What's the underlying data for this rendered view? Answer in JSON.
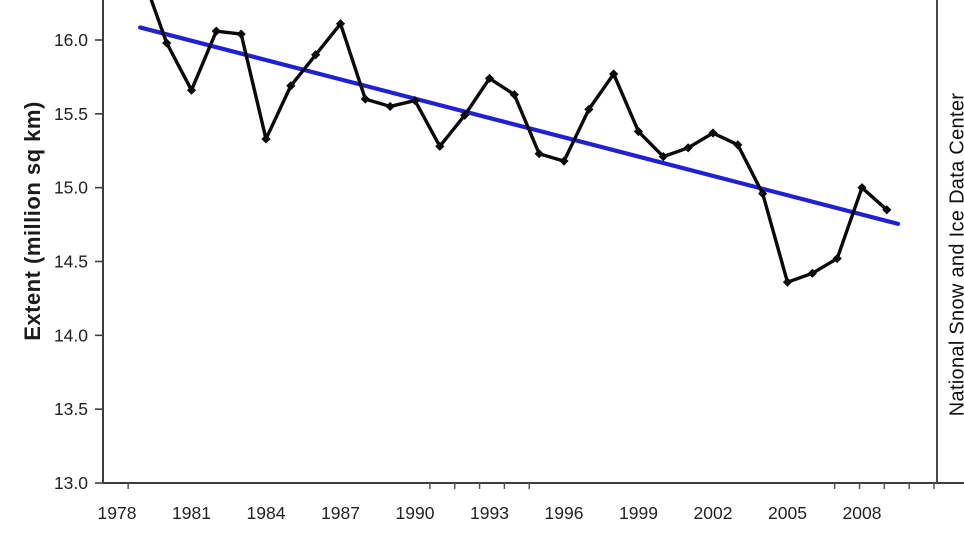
{
  "chart_data": {
    "type": "line",
    "title": "",
    "ylabel": "Extent (million sq km)",
    "right_label": "National Snow and Ice Data Center",
    "xlabel": "",
    "x": [
      1979,
      1980,
      1981,
      1982,
      1983,
      1984,
      1985,
      1986,
      1987,
      1988,
      1989,
      1990,
      1991,
      1992,
      1993,
      1994,
      1995,
      1996,
      1997,
      1998,
      1999,
      2000,
      2001,
      2002,
      2003,
      2004,
      2005,
      2006,
      2007,
      2008,
      2009
    ],
    "series": [
      {
        "name": "arctic-sea-ice-extent",
        "color": "#0a0a0a",
        "marker": "diamond",
        "values": [
          16.45,
          15.98,
          15.66,
          16.06,
          16.04,
          15.33,
          15.69,
          15.9,
          16.11,
          15.6,
          15.55,
          15.59,
          15.28,
          15.49,
          15.74,
          15.63,
          15.23,
          15.18,
          15.53,
          15.77,
          15.38,
          15.21,
          15.27,
          15.37,
          15.29,
          14.96,
          14.36,
          14.42,
          14.52,
          15.0,
          14.85
        ]
      }
    ],
    "trend_line": {
      "name": "linear-trend",
      "color": "#2121d1",
      "x1": 1978.93,
      "y1": 16.085,
      "x2": 2009.45,
      "y2": 14.755
    },
    "x_tick_labels": [
      "1978",
      "1981",
      "1984",
      "1987",
      "1990",
      "1993",
      "1996",
      "1999",
      "2002",
      "2005",
      "2008"
    ],
    "x_tick_years": [
      1978,
      1981,
      1984,
      1987,
      1990,
      1993,
      1996,
      1999,
      2002,
      2005,
      2008
    ],
    "minor_tick_years": [
      1978.45,
      1990.6,
      1991.6,
      1992.6,
      1993.6,
      1994.6,
      2006.9,
      2007.9,
      2008.9,
      2009.9,
      2010.9
    ],
    "y_tick_labels": [
      "16.0",
      "15.5",
      "15.0",
      "14.5",
      "14.0",
      "13.5",
      "13.0"
    ],
    "y_tick_values": [
      16.0,
      15.5,
      15.0,
      14.5,
      14.0,
      13.5,
      13.0
    ],
    "ylim": [
      13.0,
      16.27
    ],
    "xlim": [
      1977.4,
      2012
    ],
    "grid": "off",
    "legend": "none",
    "note": "top of chart cropped; 1979 data point above visible area"
  }
}
